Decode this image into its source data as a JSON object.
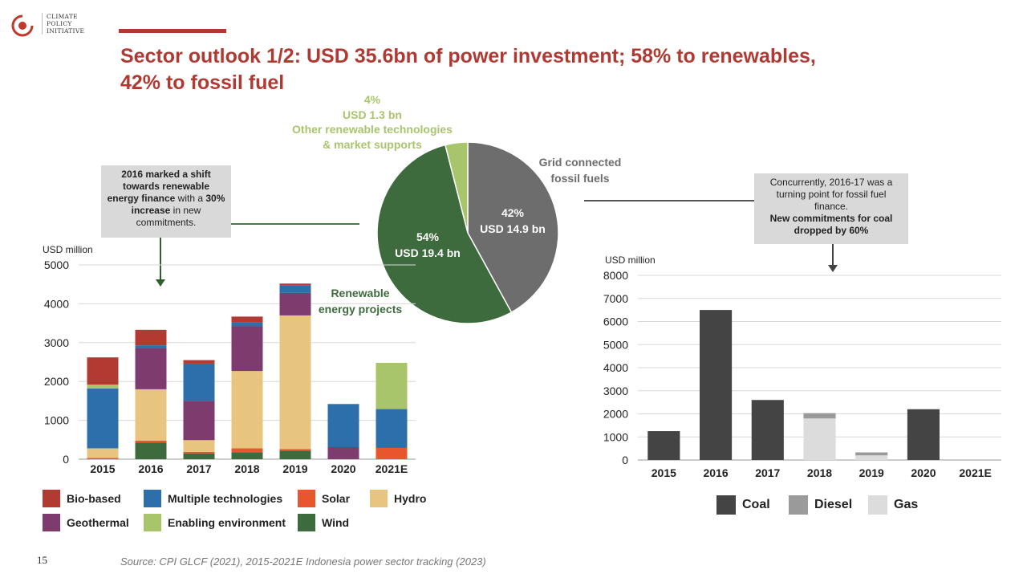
{
  "logo": {
    "line1": "CLIMATE",
    "line2": "POLICY",
    "line3": "INITIATIVE"
  },
  "title": {
    "line1": "Sector outlook 1/2: USD 35.6bn of power investment; 58% to renewables,",
    "line2": "42% to fossil fuel"
  },
  "pie": {
    "slices": [
      {
        "name": "Grid connected fossil fuels",
        "pct": "42%",
        "usd": "USD 14.9 bn",
        "value": 42,
        "color": "#6d6d6d"
      },
      {
        "name": "Renewable energy projects",
        "pct": "54%",
        "usd": "USD 19.4 bn",
        "value": 54,
        "color": "#3d6b3d"
      },
      {
        "name": "Other renewable technologies & market supports",
        "pct": "4%",
        "usd": "USD 1.3 bn",
        "value": 4,
        "color": "#a9c56b"
      }
    ],
    "label_fossil_1": "Grid connected",
    "label_fossil_2": "fossil fuels",
    "label_renew_1": "Renewable",
    "label_renew_2": "energy projects",
    "label_other_1": "4%",
    "label_other_2": "USD 1.3 bn",
    "label_other_3": "Other renewable technologies",
    "label_other_4": "& market supports"
  },
  "callout_left": {
    "p1": "2016 marked a shift towards renewable energy finance",
    "p2": " with a ",
    "p3": "30% increase",
    "p4": " in new commitments."
  },
  "callout_right": {
    "p1": "Concurrently, 2016-17 was a turning point for fossil fuel finance.",
    "p2": "New commitments for coal dropped by 60%"
  },
  "chart_data": [
    {
      "type": "bar",
      "stacked": true,
      "ylabel": "USD million",
      "ylim": [
        0,
        5000
      ],
      "yticks": [
        0,
        1000,
        2000,
        3000,
        4000,
        5000
      ],
      "categories": [
        "2015",
        "2016",
        "2017",
        "2018",
        "2019",
        "2020",
        "2021E"
      ],
      "series": [
        {
          "name": "Wind",
          "color": "#3d6b3d",
          "values": [
            0,
            430,
            150,
            180,
            220,
            0,
            0
          ]
        },
        {
          "name": "Solar",
          "color": "#e8562e",
          "values": [
            30,
            50,
            40,
            100,
            40,
            0,
            290
          ]
        },
        {
          "name": "Hydro",
          "color": "#e8c57f",
          "values": [
            250,
            1320,
            300,
            1990,
            3440,
            0,
            0
          ]
        },
        {
          "name": "Geothermal",
          "color": "#7d3b6e",
          "values": [
            0,
            1060,
            1010,
            1150,
            580,
            310,
            0
          ]
        },
        {
          "name": "Multiple technologies",
          "color": "#2d6fab",
          "values": [
            1540,
            70,
            960,
            100,
            200,
            1110,
            1000
          ]
        },
        {
          "name": "Enabling environment",
          "color": "#a9c56b",
          "values": [
            100,
            0,
            0,
            0,
            0,
            0,
            1190
          ]
        },
        {
          "name": "Bio-based",
          "color": "#b23a33",
          "values": [
            700,
            400,
            90,
            150,
            40,
            0,
            0
          ]
        }
      ],
      "legend": [
        "Bio-based",
        "Multiple technologies",
        "Solar",
        "Hydro",
        "Geothermal",
        "Enabling environment",
        "Wind"
      ]
    },
    {
      "type": "bar",
      "stacked": true,
      "ylabel": "USD million",
      "ylim": [
        0,
        8000
      ],
      "yticks": [
        0,
        1000,
        2000,
        3000,
        4000,
        5000,
        6000,
        7000,
        8000
      ],
      "categories": [
        "2015",
        "2016",
        "2017",
        "2018",
        "2019",
        "2020",
        "2021E"
      ],
      "series": [
        {
          "name": "Coal",
          "color": "#444444",
          "values": [
            1250,
            6500,
            2600,
            0,
            0,
            2200,
            0
          ]
        },
        {
          "name": "Gas",
          "color": "#dcdcdc",
          "values": [
            0,
            0,
            0,
            1800,
            200,
            0,
            0
          ]
        },
        {
          "name": "Diesel",
          "color": "#9a9a9a",
          "values": [
            0,
            0,
            0,
            230,
            130,
            0,
            0
          ]
        }
      ],
      "legend": [
        "Coal",
        "Diesel",
        "Gas"
      ]
    }
  ],
  "source": "Source: CPI GLCF (2021), 2015-2021E Indonesia power sector tracking (2023)",
  "page_number": "15"
}
